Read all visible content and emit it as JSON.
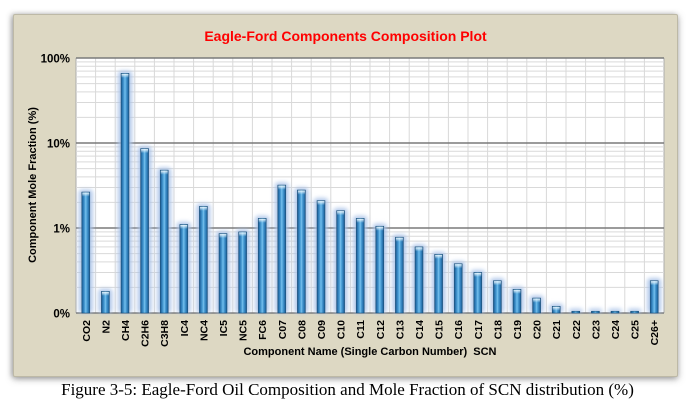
{
  "figure": {
    "caption": "Figure 3-5: Eagle-Ford Oil Composition and Mole Fraction of SCN distribution (%)"
  },
  "chart_data": {
    "type": "bar",
    "title": "Eagle-Ford Components Composition Plot",
    "title_color": "#ff0000",
    "xlabel": "Component Name (Single Carbon Number)  SCN",
    "ylabel": "Component Mole Fraction (%)",
    "y_scale": "log",
    "ylim": [
      0.1,
      100
    ],
    "y_ticks": [
      {
        "value": 0.1,
        "label": "0%"
      },
      {
        "value": 1,
        "label": "1%"
      },
      {
        "value": 10,
        "label": "10%"
      },
      {
        "value": 100,
        "label": "100%"
      }
    ],
    "grid": true,
    "legend": "none",
    "categories": [
      "CO2",
      "N2",
      "CH4",
      "C2H6",
      "C3H8",
      "IC4",
      "NC4",
      "IC5",
      "NC5",
      "FC6",
      "C07",
      "C08",
      "C09",
      "C10",
      "C11",
      "C12",
      "C13",
      "C14",
      "C15",
      "C16",
      "C17",
      "C18",
      "C19",
      "C20",
      "C21",
      "C22",
      "C23",
      "C24",
      "C25",
      "C26+"
    ],
    "values": [
      2.65,
      0.18,
      66,
      8.6,
      4.8,
      1.1,
      1.8,
      0.86,
      0.9,
      1.3,
      3.2,
      2.8,
      2.1,
      1.6,
      1.3,
      1.05,
      0.78,
      0.6,
      0.49,
      0.38,
      0.3,
      0.24,
      0.19,
      0.15,
      0.12,
      0.105,
      0.105,
      0.105,
      0.105,
      0.24
    ],
    "colors": {
      "frame_background": "#ddd8c3",
      "plot_background": "#ffffff",
      "major_gridline": "#7a7a7a",
      "minor_gridline": "#d9d9d9",
      "bar_dark": "#1c5a8e",
      "bar_mid": "#2d7ab6",
      "bar_light": "#7ec3ef",
      "bar_glow": "#a8c2e8"
    }
  }
}
